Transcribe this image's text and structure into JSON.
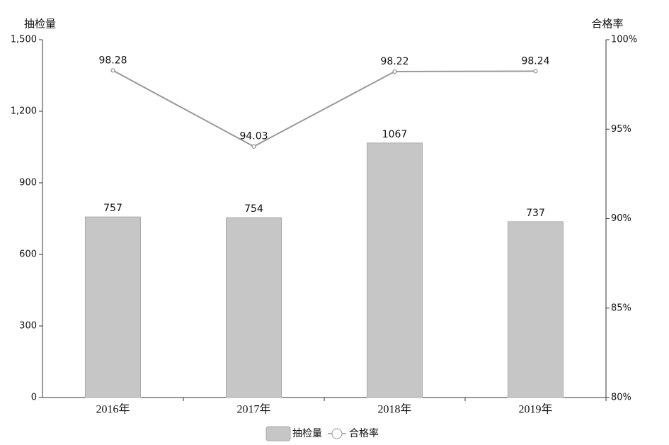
{
  "chart_data": {
    "type": "bar",
    "y_label": "抽检量",
    "y2_label": "合格率",
    "categories": [
      "2016年",
      "2017年",
      "2018年",
      "2019年"
    ],
    "series": [
      {
        "name": "抽检量",
        "color": "#c6c6c6",
        "values": [
          757,
          754,
          1067,
          737
        ]
      },
      {
        "name": "合格率",
        "type": "line",
        "axis": "y2",
        "color": "#999999",
        "values": [
          98.28,
          94.03,
          98.22,
          98.24
        ]
      }
    ],
    "ylim": [
      0,
      1500
    ],
    "yticks": [
      0,
      300,
      600,
      900,
      {
        "value": 1200,
        "label": "1,200"
      },
      {
        "value": 1500,
        "label": "1,500"
      }
    ],
    "y2lim": [
      80,
      100
    ],
    "y2ticks": [
      {
        "value": 80,
        "label": "80%"
      },
      {
        "value": 85,
        "label": "85%"
      },
      {
        "value": 90,
        "label": "90%"
      },
      {
        "value": 95,
        "label": "95%"
      },
      {
        "value": 100,
        "label": "100%"
      }
    ],
    "legend": "bottom"
  }
}
